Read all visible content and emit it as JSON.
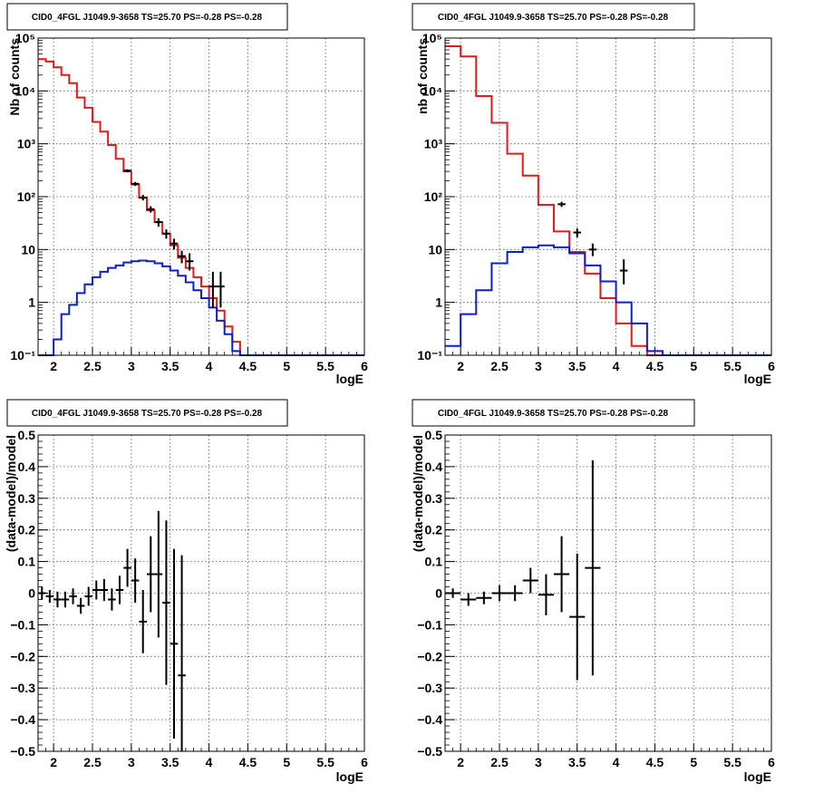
{
  "colors": {
    "data": "#000000",
    "total_model": "#e31a1c",
    "source_model": "#0a1fd0",
    "grid": "#555555",
    "frame": "#000000"
  },
  "chart_data": [
    {
      "type": "line",
      "title": "CID0_4FGL J1049.9-3658 TS=25.70 PS=-0.28 PS=-0.28",
      "xlabel": "logE",
      "ylabel": "Nb of counts",
      "xlim": [
        1.8,
        6.0
      ],
      "ylim": [
        0.1,
        100000
      ],
      "yscale": "log",
      "grid": true,
      "x_ticks": [
        "2",
        "2.5",
        "3",
        "3.5",
        "4",
        "4.5",
        "5",
        "5.5",
        "6"
      ],
      "y_ticks": [
        "10⁻¹",
        "1",
        "10",
        "10²",
        "10³",
        "10⁴",
        "10⁵"
      ],
      "bin_edges": [
        1.8,
        1.9,
        2.0,
        2.1,
        2.2,
        2.3,
        2.4,
        2.5,
        2.6,
        2.7,
        2.8,
        2.9,
        3.0,
        3.1,
        3.2,
        3.3,
        3.4,
        3.5,
        3.6,
        3.7,
        3.8,
        3.9,
        4.0,
        4.1,
        4.2,
        4.3,
        4.4,
        4.5,
        4.6,
        4.7,
        4.8,
        4.9,
        5.0,
        5.1,
        5.2,
        5.3,
        5.4,
        5.5,
        5.6,
        5.7,
        5.8,
        5.9,
        6.0
      ],
      "series": [
        {
          "role": "total_model",
          "values": [
            40000,
            36000,
            28000,
            20000,
            14000,
            7500,
            4800,
            2600,
            1700,
            950,
            520,
            300,
            170,
            95,
            55,
            33,
            20,
            12,
            7,
            4.5,
            3,
            2,
            1.2,
            0.7,
            0.35,
            0.18,
            0.1,
            0.1,
            0.1,
            0.1,
            0.1,
            0.1,
            0.1,
            0.1,
            0.1,
            0.1,
            0.1,
            0.1,
            0.1,
            0.1,
            0.1,
            0.1
          ]
        },
        {
          "role": "source_model",
          "values": [
            0.1,
            0.1,
            0.2,
            0.6,
            0.9,
            1.5,
            2.2,
            3.0,
            3.8,
            4.5,
            5.0,
            5.7,
            6.0,
            6.2,
            6.0,
            5.5,
            4.8,
            4.0,
            3.2,
            2.4,
            1.7,
            1.2,
            0.8,
            0.45,
            0.25,
            0.12,
            0.1,
            0.1,
            0.1,
            0.1,
            0.1,
            0.1,
            0.1,
            0.1,
            0.1,
            0.1,
            0.1,
            0.1,
            0.1,
            0.1,
            0.1,
            0.1
          ]
        }
      ],
      "data_points": [
        {
          "x": 2.95,
          "y": 310,
          "ylo": 290,
          "yhi": 330
        },
        {
          "x": 3.05,
          "y": 175,
          "ylo": 160,
          "yhi": 190
        },
        {
          "x": 3.15,
          "y": 96,
          "ylo": 85,
          "yhi": 108
        },
        {
          "x": 3.25,
          "y": 58,
          "ylo": 50,
          "yhi": 66
        },
        {
          "x": 3.35,
          "y": 33,
          "ylo": 27,
          "yhi": 39
        },
        {
          "x": 3.45,
          "y": 20,
          "ylo": 16,
          "yhi": 24
        },
        {
          "x": 3.55,
          "y": 13,
          "ylo": 10,
          "yhi": 16
        },
        {
          "x": 3.65,
          "y": 7.5,
          "ylo": 5.5,
          "yhi": 9.5
        },
        {
          "x": 3.75,
          "y": 6.0,
          "ylo": 4.0,
          "yhi": 8.5
        },
        {
          "x": 4.05,
          "y": 2.0,
          "ylo": 0.8,
          "yhi": 3.8
        },
        {
          "x": 4.15,
          "y": 2.0,
          "ylo": 0.8,
          "yhi": 3.8
        }
      ]
    },
    {
      "type": "line",
      "title": "CID0_4FGL J1049.9-3658 TS=25.70 PS=-0.28 PS=-0.28",
      "xlabel": "logE",
      "ylabel": "nb of counts",
      "xlim": [
        1.8,
        6.0
      ],
      "ylim": [
        0.1,
        100000
      ],
      "yscale": "log",
      "grid": true,
      "x_ticks": [
        "2",
        "2.5",
        "3",
        "3.5",
        "4",
        "4.5",
        "5",
        "5.5",
        "6"
      ],
      "y_ticks": [
        "10⁻¹",
        "1",
        "10",
        "10²",
        "10³",
        "10⁴",
        "10⁵"
      ],
      "bin_edges": [
        1.8,
        2.0,
        2.2,
        2.4,
        2.6,
        2.8,
        3.0,
        3.2,
        3.4,
        3.6,
        3.8,
        4.0,
        4.2,
        4.4,
        4.6,
        4.8,
        5.0,
        5.2,
        5.4,
        5.6,
        5.8,
        6.0
      ],
      "series": [
        {
          "role": "total_model",
          "values": [
            70000,
            45000,
            8000,
            2500,
            650,
            250,
            70,
            22,
            9,
            3.5,
            1.2,
            0.4,
            0.15,
            0.1,
            0.1,
            0.1,
            0.1,
            0.1,
            0.1,
            0.1,
            0.1
          ]
        },
        {
          "role": "source_model",
          "values": [
            0.15,
            0.6,
            1.7,
            5.5,
            9.0,
            11,
            12,
            11,
            8.5,
            5.0,
            2.5,
            1.0,
            0.4,
            0.12,
            0.1,
            0.1,
            0.1,
            0.1,
            0.1,
            0.1,
            0.1
          ]
        }
      ],
      "data_points": [
        {
          "x": 3.3,
          "y": 72,
          "ylo": 64,
          "yhi": 80
        },
        {
          "x": 3.5,
          "y": 21,
          "ylo": 17,
          "yhi": 25
        },
        {
          "x": 3.7,
          "y": 10,
          "ylo": 7.5,
          "yhi": 13
        },
        {
          "x": 4.1,
          "y": 4.0,
          "ylo": 2.2,
          "yhi": 6.5
        }
      ]
    },
    {
      "type": "scatter",
      "title": "CID0_4FGL J1049.9-3658 TS=25.70 PS=-0.28 PS=-0.28",
      "xlabel": "logE",
      "ylabel": "(data-model)/model",
      "xlim": [
        1.8,
        6.0
      ],
      "ylim": [
        -0.5,
        0.5
      ],
      "grid": true,
      "x_ticks": [
        "2",
        "2.5",
        "3",
        "3.5",
        "4",
        "4.5",
        "5",
        "5.5",
        "6"
      ],
      "y_ticks": [
        "−0.5",
        "−0.4",
        "−0.3",
        "−0.2",
        "−0.1",
        "0",
        "0.1",
        "0.2",
        "0.3",
        "0.4",
        "0.5"
      ],
      "bin_halfwidth": 0.05,
      "points": [
        {
          "x": 1.85,
          "y": 0.0,
          "err": 0.02
        },
        {
          "x": 1.95,
          "y": -0.01,
          "err": 0.02
        },
        {
          "x": 2.05,
          "y": -0.02,
          "err": 0.025
        },
        {
          "x": 2.15,
          "y": -0.02,
          "err": 0.025
        },
        {
          "x": 2.25,
          "y": -0.01,
          "err": 0.025
        },
        {
          "x": 2.35,
          "y": -0.04,
          "err": 0.025
        },
        {
          "x": 2.45,
          "y": -0.01,
          "err": 0.03
        },
        {
          "x": 2.55,
          "y": 0.01,
          "err": 0.03
        },
        {
          "x": 2.65,
          "y": 0.01,
          "err": 0.035
        },
        {
          "x": 2.75,
          "y": -0.02,
          "err": 0.035
        },
        {
          "x": 2.85,
          "y": 0.01,
          "err": 0.045
        },
        {
          "x": 2.95,
          "y": 0.08,
          "err": 0.06
        },
        {
          "x": 3.05,
          "y": 0.04,
          "err": 0.07
        },
        {
          "x": 3.15,
          "y": -0.09,
          "err": 0.1
        },
        {
          "x": 3.25,
          "y": 0.06,
          "err": 0.12
        },
        {
          "x": 3.35,
          "y": 0.06,
          "err": 0.2
        },
        {
          "x": 3.45,
          "y": -0.03,
          "err": 0.26
        },
        {
          "x": 3.55,
          "y": -0.16,
          "err": 0.3
        },
        {
          "x": 3.65,
          "y": -0.26,
          "err": 0.38
        }
      ]
    },
    {
      "type": "scatter",
      "title": "CID0_4FGL J1049.9-3658 TS=25.70 PS=-0.28 PS=-0.28",
      "xlabel": "logE",
      "ylabel": "(data-model)/model",
      "xlim": [
        1.8,
        6.0
      ],
      "ylim": [
        -0.5,
        0.5
      ],
      "grid": true,
      "x_ticks": [
        "2",
        "2.5",
        "3",
        "3.5",
        "4",
        "4.5",
        "5",
        "5.5",
        "6"
      ],
      "y_ticks": [
        "−0.5",
        "−0.4",
        "−0.3",
        "−0.2",
        "−0.1",
        "0",
        "0.1",
        "0.2",
        "0.3",
        "0.4",
        "0.5"
      ],
      "bin_halfwidth": 0.1,
      "points": [
        {
          "x": 1.9,
          "y": 0.0,
          "err": 0.015
        },
        {
          "x": 2.1,
          "y": -0.02,
          "err": 0.02
        },
        {
          "x": 2.3,
          "y": -0.015,
          "err": 0.02
        },
        {
          "x": 2.5,
          "y": 0.0,
          "err": 0.025
        },
        {
          "x": 2.7,
          "y": 0.0,
          "err": 0.025
        },
        {
          "x": 2.9,
          "y": 0.04,
          "err": 0.04
        },
        {
          "x": 3.1,
          "y": -0.005,
          "err": 0.065
        },
        {
          "x": 3.3,
          "y": 0.06,
          "err": 0.12
        },
        {
          "x": 3.5,
          "y": -0.075,
          "err": 0.2
        },
        {
          "x": 3.7,
          "y": 0.08,
          "err": 0.34
        }
      ]
    }
  ]
}
